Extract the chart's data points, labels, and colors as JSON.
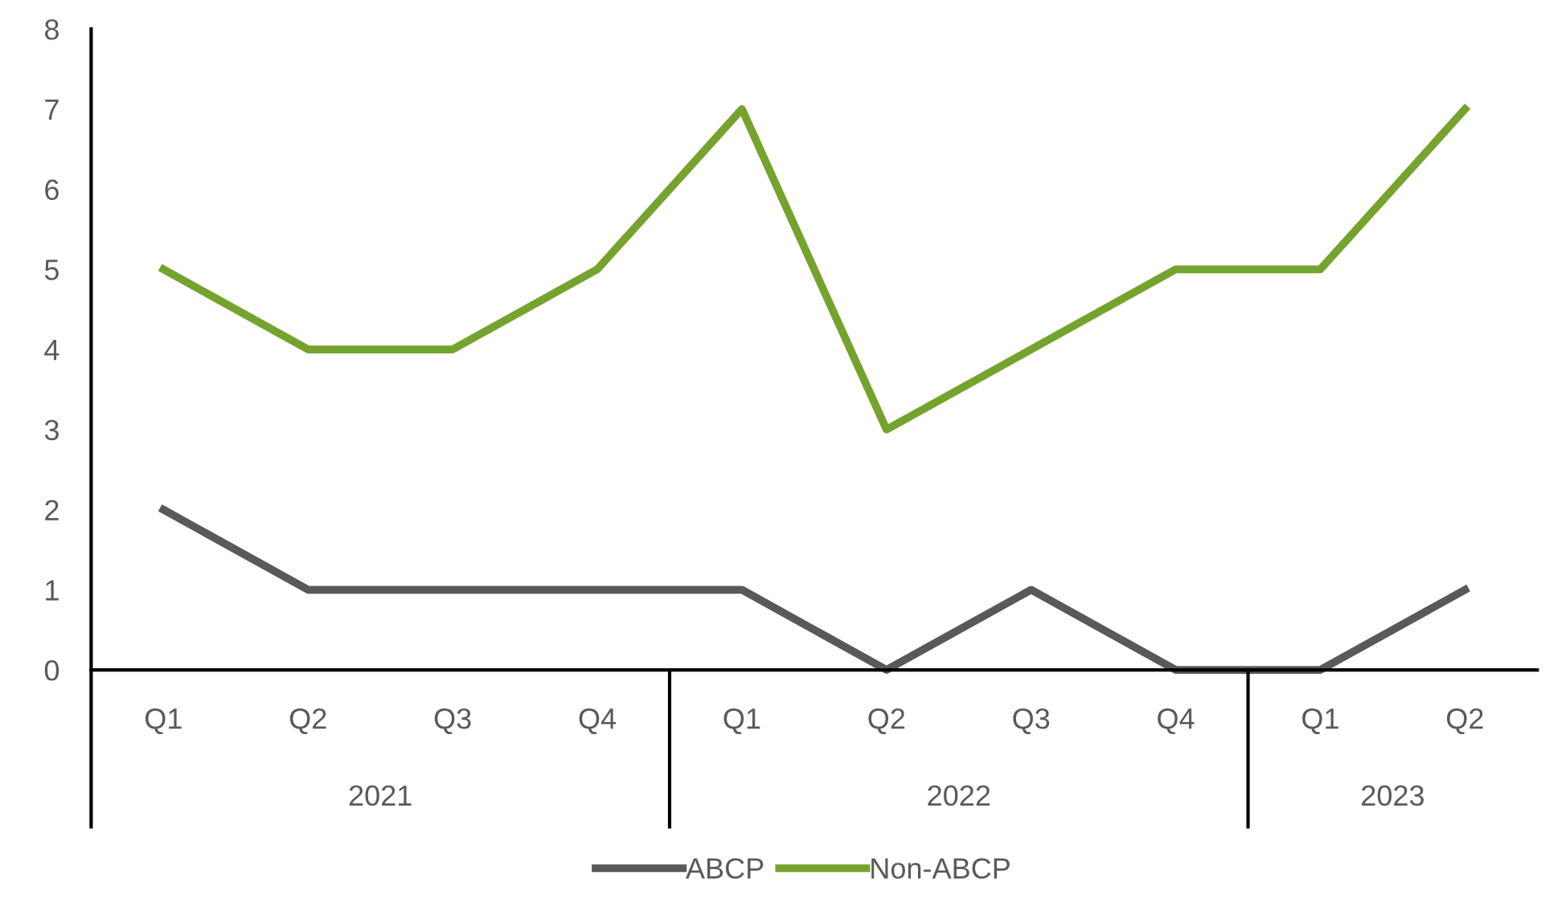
{
  "chart_data": {
    "type": "line",
    "categories": [
      "Q1",
      "Q2",
      "Q3",
      "Q4",
      "Q1",
      "Q2",
      "Q3",
      "Q4",
      "Q1",
      "Q2"
    ],
    "series": [
      {
        "name": "ABCP",
        "color": "#595959",
        "values": [
          2,
          1,
          1,
          1,
          1,
          0,
          1,
          0,
          0,
          1
        ]
      },
      {
        "name": "Non-ABCP",
        "color": "#76a22e",
        "values": [
          5,
          4,
          4,
          5,
          7,
          3,
          4,
          5,
          5,
          7
        ]
      }
    ],
    "annotations": [
      "2021",
      "2022",
      "2023"
    ],
    "ylim": [
      0,
      8
    ],
    "yticks": [
      0,
      1,
      2,
      3,
      4,
      5,
      6,
      7,
      8
    ],
    "grid": false,
    "legend": "bottom",
    "marker": "none",
    "line_style": "solid"
  }
}
